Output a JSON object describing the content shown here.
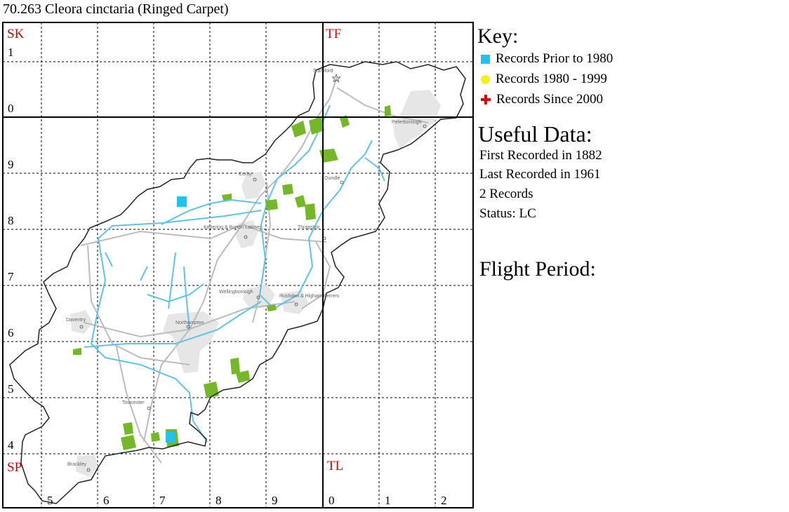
{
  "title": "70.263 Cleora cinctaria (Ringed Carpet)",
  "grid": {
    "squares": {
      "top_left": "SK",
      "top_right": "TF",
      "bottom_left": "SP",
      "bottom_right": "TL"
    },
    "easting_labels": [
      "5",
      "6",
      "7",
      "8",
      "9",
      "0",
      "1",
      "2"
    ],
    "northing_labels": [
      "1",
      "0",
      "9",
      "8",
      "7",
      "6",
      "5",
      "4"
    ],
    "square_label_color": "#d40000"
  },
  "map": {
    "places": [
      "Stamford",
      "Peterborough",
      "Corby",
      "Oundle",
      "Kettering & Burton Latimer",
      "Thrapston",
      "Wellingborough",
      "Rushden & Higham Ferrers",
      "Daventry",
      "Northampton",
      "Towcester",
      "Brackley"
    ],
    "colors": {
      "rivers": "#5ec3e8",
      "woodland": "#74b828",
      "urban": "#e6e6e6",
      "roads": "#bcbcbc",
      "boundary": "#222222"
    }
  },
  "records": [
    {
      "period": "prior_1980",
      "gridref_note": "SP7 8"
    },
    {
      "period": "prior_1980",
      "gridref_note": "SP7 4"
    }
  ],
  "key": {
    "heading": "Key:",
    "items": [
      {
        "label": "Records Prior to 1980",
        "symbol": "square",
        "color": "#1fc3f0"
      },
      {
        "label": "Records 1980 - 1999",
        "symbol": "circle",
        "color": "#f5f500"
      },
      {
        "label": "Records Since 2000",
        "symbol": "plus",
        "color": "#e00000"
      }
    ]
  },
  "useful_data": {
    "heading": "Useful Data:",
    "lines": [
      "First Recorded in 1882",
      "Last Recorded in 1961",
      "2 Records",
      "Status: LC"
    ]
  },
  "flight_period": {
    "heading": "Flight Period:"
  }
}
